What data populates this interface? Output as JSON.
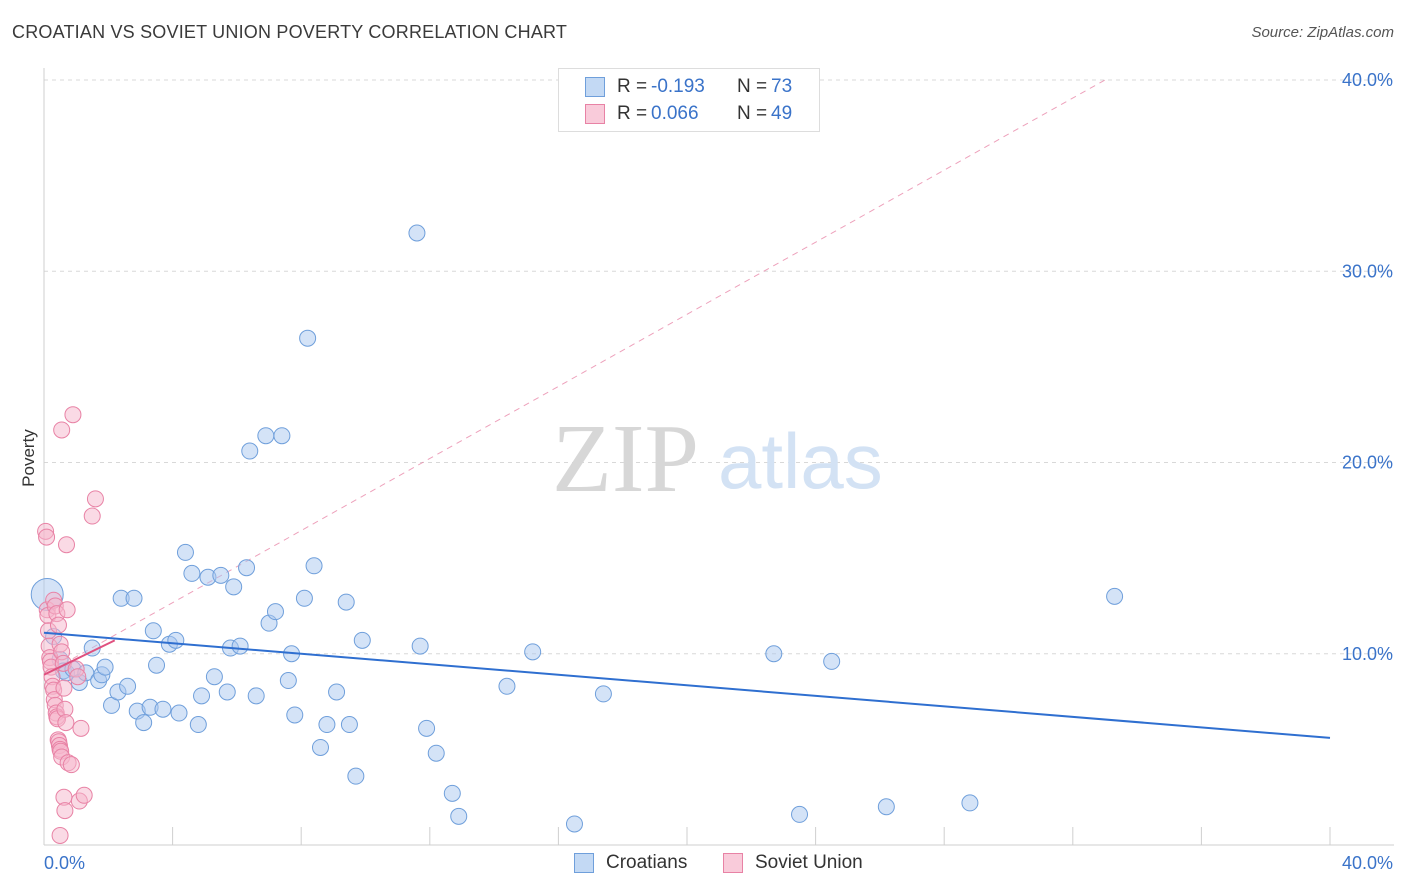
{
  "title": "CROATIAN VS SOVIET UNION POVERTY CORRELATION CHART",
  "source": "Source: ZipAtlas.com",
  "watermark": {
    "zip": "ZIP",
    "atlas": "atlas"
  },
  "legend": {
    "rows": [
      {
        "r_label": "R =",
        "r_value": "-0.193",
        "n_label": "N =",
        "n_value": "73"
      },
      {
        "r_label": "R =",
        "r_value": "0.066",
        "n_label": "N =",
        "n_value": "49"
      }
    ]
  },
  "colors": {
    "croatians_fill": "#a9c8ef",
    "croatians_stroke": "#6f9fdb",
    "croatians_line": "#2f6fd0",
    "soviet_fill": "#f6b6cb",
    "soviet_stroke": "#e882a5",
    "soviet_line": "#e0507f",
    "tick_label": "#3a73c9",
    "grid": "#d8d8d8"
  },
  "chart_data": {
    "type": "scatter",
    "title": "CROATIAN VS SOVIET UNION POVERTY CORRELATION CHART",
    "xlabel": "",
    "ylabel": "Poverty",
    "xlim": [
      0,
      40
    ],
    "ylim": [
      0,
      40
    ],
    "x_tick_labels": [
      "0.0%",
      "40.0%"
    ],
    "y_ticks": [
      10,
      20,
      30,
      40
    ],
    "y_tick_labels": [
      "10.0%",
      "20.0%",
      "30.0%",
      "40.0%"
    ],
    "grid": "horizontal dashed",
    "legend_position": "top-center",
    "series": [
      {
        "name": "Croatians",
        "trend": {
          "x": [
            0,
            40
          ],
          "y": [
            11.1,
            5.6
          ]
        },
        "points": [
          [
            0.1,
            13.1
          ],
          [
            0.3,
            10.9
          ],
          [
            0.5,
            9.7
          ],
          [
            0.6,
            9.1
          ],
          [
            0.7,
            9.0
          ],
          [
            0.9,
            9.2
          ],
          [
            1.1,
            8.5
          ],
          [
            1.3,
            9.0
          ],
          [
            1.5,
            10.3
          ],
          [
            1.7,
            8.6
          ],
          [
            1.8,
            8.9
          ],
          [
            1.9,
            9.3
          ],
          [
            2.1,
            7.3
          ],
          [
            2.3,
            8.0
          ],
          [
            2.4,
            12.9
          ],
          [
            2.6,
            8.3
          ],
          [
            2.8,
            12.9
          ],
          [
            2.9,
            7.0
          ],
          [
            3.1,
            6.4
          ],
          [
            3.3,
            7.2
          ],
          [
            3.4,
            11.2
          ],
          [
            3.5,
            9.4
          ],
          [
            3.7,
            7.1
          ],
          [
            3.9,
            10.5
          ],
          [
            4.1,
            10.7
          ],
          [
            4.2,
            6.9
          ],
          [
            4.4,
            15.3
          ],
          [
            4.6,
            14.2
          ],
          [
            4.8,
            6.3
          ],
          [
            4.9,
            7.8
          ],
          [
            5.1,
            14.0
          ],
          [
            5.3,
            8.8
          ],
          [
            5.5,
            14.1
          ],
          [
            5.7,
            8.0
          ],
          [
            5.8,
            10.3
          ],
          [
            5.9,
            13.5
          ],
          [
            6.1,
            10.4
          ],
          [
            6.3,
            14.5
          ],
          [
            6.4,
            20.6
          ],
          [
            6.6,
            7.8
          ],
          [
            6.9,
            21.4
          ],
          [
            7.0,
            11.6
          ],
          [
            7.2,
            12.2
          ],
          [
            7.4,
            21.4
          ],
          [
            7.6,
            8.6
          ],
          [
            7.7,
            10.0
          ],
          [
            7.8,
            6.8
          ],
          [
            8.1,
            12.9
          ],
          [
            8.2,
            26.5
          ],
          [
            8.4,
            14.6
          ],
          [
            8.6,
            5.1
          ],
          [
            8.8,
            6.3
          ],
          [
            9.1,
            8.0
          ],
          [
            9.4,
            12.7
          ],
          [
            9.5,
            6.3
          ],
          [
            9.7,
            3.6
          ],
          [
            9.9,
            10.7
          ],
          [
            11.6,
            32.0
          ],
          [
            11.7,
            10.4
          ],
          [
            11.9,
            6.1
          ],
          [
            12.2,
            4.8
          ],
          [
            12.7,
            2.7
          ],
          [
            12.9,
            1.5
          ],
          [
            14.4,
            8.3
          ],
          [
            15.2,
            10.1
          ],
          [
            16.5,
            1.1
          ],
          [
            17.4,
            7.9
          ],
          [
            22.7,
            10.0
          ],
          [
            23.5,
            1.6
          ],
          [
            24.5,
            9.6
          ],
          [
            26.2,
            2.0
          ],
          [
            28.8,
            2.2
          ],
          [
            33.3,
            13.0
          ]
        ]
      },
      {
        "name": "Soviet Union",
        "trend": {
          "x": [
            0,
            2.2
          ],
          "y": [
            8.9,
            10.7
          ]
        },
        "trend_ext": {
          "x": [
            0,
            33.0
          ],
          "y": [
            8.9,
            40.0
          ]
        },
        "points": [
          [
            0.05,
            16.4
          ],
          [
            0.08,
            16.1
          ],
          [
            0.1,
            12.3
          ],
          [
            0.12,
            12.0
          ],
          [
            0.14,
            11.2
          ],
          [
            0.16,
            10.4
          ],
          [
            0.18,
            9.8
          ],
          [
            0.2,
            9.6
          ],
          [
            0.22,
            9.3
          ],
          [
            0.25,
            8.8
          ],
          [
            0.27,
            8.3
          ],
          [
            0.3,
            8.1
          ],
          [
            0.32,
            7.6
          ],
          [
            0.35,
            7.3
          ],
          [
            0.38,
            6.9
          ],
          [
            0.4,
            6.7
          ],
          [
            0.42,
            6.6
          ],
          [
            0.44,
            5.5
          ],
          [
            0.46,
            5.4
          ],
          [
            0.48,
            5.2
          ],
          [
            0.5,
            5.0
          ],
          [
            0.52,
            4.9
          ],
          [
            0.55,
            4.6
          ],
          [
            0.3,
            12.8
          ],
          [
            0.35,
            12.5
          ],
          [
            0.4,
            12.1
          ],
          [
            0.45,
            11.5
          ],
          [
            0.5,
            10.5
          ],
          [
            0.55,
            10.1
          ],
          [
            0.6,
            9.5
          ],
          [
            0.62,
            8.2
          ],
          [
            0.65,
            7.1
          ],
          [
            0.68,
            6.4
          ],
          [
            0.7,
            15.7
          ],
          [
            0.72,
            12.3
          ],
          [
            0.75,
            4.3
          ],
          [
            0.55,
            21.7
          ],
          [
            0.62,
            2.5
          ],
          [
            0.65,
            1.8
          ],
          [
            0.5,
            0.5
          ],
          [
            0.85,
            4.2
          ],
          [
            0.9,
            22.5
          ],
          [
            1.0,
            9.2
          ],
          [
            1.05,
            8.8
          ],
          [
            1.1,
            2.3
          ],
          [
            1.15,
            6.1
          ],
          [
            1.25,
            2.6
          ],
          [
            1.5,
            17.2
          ],
          [
            1.6,
            18.1
          ]
        ]
      }
    ]
  }
}
